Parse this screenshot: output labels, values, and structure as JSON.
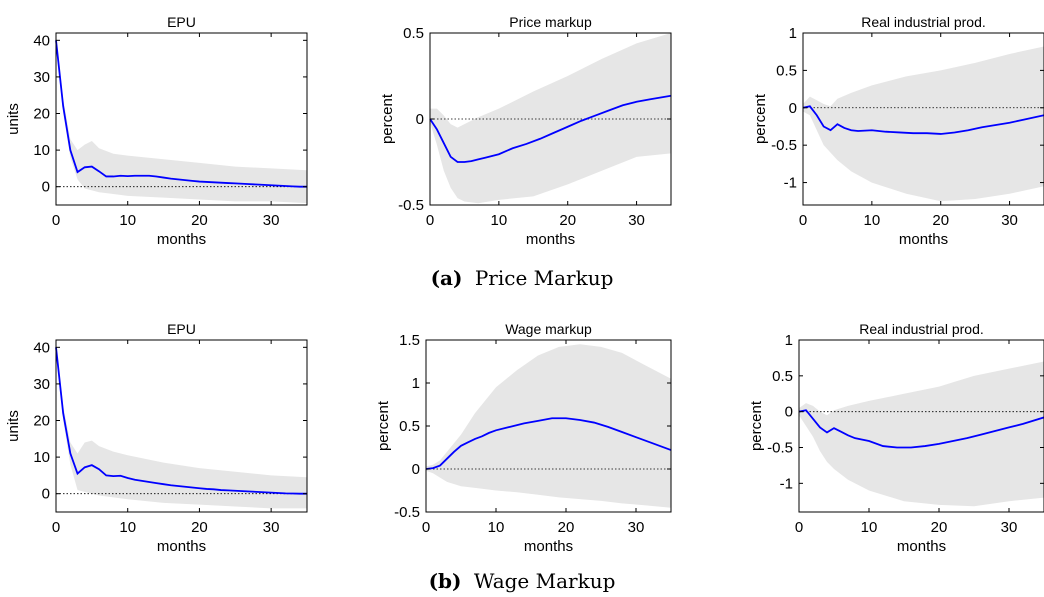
{
  "captions": [
    {
      "label": "(a)",
      "text": "Price Markup"
    },
    {
      "label": "(b)",
      "text": "Wage Markup"
    }
  ],
  "colors": {
    "line": "#0000ff",
    "band": "#e6e6e6",
    "zero_line": "#000000",
    "axes": "#000000"
  },
  "chart_data": [
    {
      "type": "line",
      "panel": "a1",
      "title": "EPU",
      "xlabel": "months",
      "ylabel": "units",
      "xlim": [
        0,
        35
      ],
      "ylim": [
        -5,
        42
      ],
      "xticks": [
        0,
        10,
        20,
        30
      ],
      "yticks": [
        0,
        10,
        20,
        30,
        40
      ],
      "ytick_labels": [
        "0",
        "10",
        "20",
        "30",
        "40"
      ],
      "zero_line": true,
      "grid": false,
      "x": [
        0,
        1,
        2,
        3,
        4,
        5,
        6,
        7,
        8,
        9,
        10,
        11,
        12,
        13,
        14,
        15,
        16,
        17,
        18,
        19,
        20,
        21,
        22,
        23,
        24,
        25,
        26,
        27,
        28,
        29,
        30,
        31,
        32,
        33,
        34,
        35
      ],
      "series": [
        {
          "values": [
            40,
            22,
            10,
            4,
            5.3,
            5.5,
            4.2,
            2.8,
            2.8,
            3.0,
            2.9,
            3.0,
            3.0,
            3.0,
            2.8,
            2.5,
            2.2,
            2.0,
            1.8,
            1.6,
            1.4,
            1.3,
            1.2,
            1.1,
            1.0,
            0.9,
            0.8,
            0.7,
            0.6,
            0.5,
            0.4,
            0.3,
            0.2,
            0.1,
            0.0,
            0.0
          ]
        }
      ],
      "band_x": [
        0,
        1,
        2,
        3,
        4,
        5,
        6,
        8,
        10,
        15,
        20,
        25,
        30,
        35
      ],
      "band_upper": [
        41,
        24,
        13,
        10,
        11.5,
        12.5,
        10.5,
        9,
        8.5,
        7.5,
        6.5,
        5.5,
        5,
        4.5
      ],
      "band_lower": [
        39,
        20,
        8,
        2,
        -0.5,
        -1,
        -1.5,
        -2,
        -2.5,
        -3,
        -3.5,
        -4,
        -4,
        -4.5
      ]
    },
    {
      "type": "line",
      "panel": "a2",
      "title": "Price markup",
      "xlabel": "months",
      "ylabel": "percent",
      "xlim": [
        0,
        35
      ],
      "ylim": [
        -0.5,
        0.5
      ],
      "xticks": [
        0,
        10,
        20,
        30
      ],
      "yticks": [
        -0.5,
        0,
        0.5
      ],
      "ytick_labels": [
        "-0.5",
        "0",
        "0.5"
      ],
      "zero_line": true,
      "grid": false,
      "x": [
        0,
        1,
        2,
        3,
        4,
        5,
        6,
        7,
        8,
        10,
        12,
        14,
        16,
        18,
        20,
        22,
        24,
        26,
        28,
        30,
        32,
        35
      ],
      "series": [
        {
          "values": [
            0,
            -0.06,
            -0.14,
            -0.22,
            -0.25,
            -0.25,
            -0.245,
            -0.235,
            -0.225,
            -0.205,
            -0.17,
            -0.145,
            -0.115,
            -0.08,
            -0.045,
            -0.01,
            0.02,
            0.05,
            0.08,
            0.1,
            0.115,
            0.135
          ]
        }
      ],
      "band_x": [
        0,
        1,
        2,
        3,
        4,
        5,
        7,
        10,
        15,
        20,
        25,
        30,
        35
      ],
      "band_upper": [
        0.06,
        0.06,
        0.02,
        -0.03,
        -0.05,
        -0.03,
        0.01,
        0.06,
        0.16,
        0.25,
        0.35,
        0.44,
        0.5
      ],
      "band_lower": [
        -0.02,
        -0.15,
        -0.3,
        -0.4,
        -0.46,
        -0.48,
        -0.49,
        -0.47,
        -0.45,
        -0.38,
        -0.3,
        -0.22,
        -0.2
      ]
    },
    {
      "type": "line",
      "panel": "a3",
      "title": "Real industrial prod.",
      "xlabel": "months",
      "ylabel": "percent",
      "xlim": [
        0,
        35
      ],
      "ylim": [
        -1.3,
        1
      ],
      "xticks": [
        0,
        10,
        20,
        30
      ],
      "yticks": [
        -1,
        -0.5,
        0,
        0.5,
        1
      ],
      "ytick_labels": [
        "-1",
        "-0.5",
        "0",
        "0.5",
        "1"
      ],
      "zero_line": true,
      "grid": false,
      "x": [
        0,
        1,
        2,
        3,
        4,
        5,
        6,
        7,
        8,
        10,
        12,
        14,
        16,
        18,
        20,
        22,
        24,
        26,
        28,
        30,
        32,
        35
      ],
      "series": [
        {
          "values": [
            0,
            0.02,
            -0.1,
            -0.25,
            -0.3,
            -0.22,
            -0.27,
            -0.3,
            -0.31,
            -0.3,
            -0.32,
            -0.33,
            -0.34,
            -0.34,
            -0.35,
            -0.33,
            -0.3,
            -0.26,
            -0.23,
            -0.2,
            -0.16,
            -0.1
          ]
        }
      ],
      "band_x": [
        0,
        1,
        2,
        3,
        4,
        5,
        7,
        10,
        15,
        20,
        25,
        30,
        35
      ],
      "band_upper": [
        0.05,
        0.15,
        0.1,
        0.05,
        0.02,
        0.12,
        0.2,
        0.3,
        0.42,
        0.5,
        0.6,
        0.72,
        0.82
      ],
      "band_lower": [
        -0.05,
        -0.1,
        -0.3,
        -0.5,
        -0.6,
        -0.7,
        -0.85,
        -1.0,
        -1.15,
        -1.25,
        -1.22,
        -1.15,
        -1.05
      ]
    },
    {
      "type": "line",
      "panel": "b1",
      "title": "EPU",
      "xlabel": "months",
      "ylabel": "units",
      "xlim": [
        0,
        35
      ],
      "ylim": [
        -5,
        42
      ],
      "xticks": [
        0,
        10,
        20,
        30
      ],
      "yticks": [
        0,
        10,
        20,
        30,
        40
      ],
      "ytick_labels": [
        "0",
        "10",
        "20",
        "30",
        "40"
      ],
      "zero_line": true,
      "grid": false,
      "x": [
        0,
        1,
        2,
        3,
        4,
        5,
        6,
        7,
        8,
        9,
        10,
        11,
        12,
        13,
        14,
        15,
        16,
        17,
        18,
        19,
        20,
        21,
        22,
        23,
        24,
        25,
        26,
        27,
        28,
        29,
        30,
        31,
        32,
        33,
        34,
        35
      ],
      "series": [
        {
          "values": [
            40,
            22,
            11,
            5.5,
            7.2,
            7.8,
            6.7,
            5.0,
            4.8,
            4.9,
            4.3,
            3.8,
            3.5,
            3.2,
            2.9,
            2.6,
            2.3,
            2.1,
            1.9,
            1.7,
            1.5,
            1.3,
            1.2,
            1.0,
            0.9,
            0.8,
            0.7,
            0.6,
            0.5,
            0.4,
            0.3,
            0.2,
            0.1,
            0.05,
            0.0,
            0.0
          ]
        }
      ],
      "band_x": [
        0,
        1,
        2,
        3,
        4,
        5,
        6,
        8,
        10,
        15,
        20,
        25,
        30,
        35
      ],
      "band_upper": [
        41,
        24,
        14,
        11,
        14,
        14.5,
        13,
        11.5,
        10.5,
        8.5,
        7,
        6,
        5,
        4.5
      ],
      "band_lower": [
        39,
        20,
        8,
        1,
        0.5,
        0,
        -0.5,
        -1,
        -1.5,
        -2.5,
        -3,
        -3.5,
        -4,
        -4
      ]
    },
    {
      "type": "line",
      "panel": "b2",
      "title": "Wage markup",
      "xlabel": "months",
      "ylabel": "percent",
      "xlim": [
        0,
        35
      ],
      "ylim": [
        -0.5,
        1.5
      ],
      "xticks": [
        0,
        10,
        20,
        30
      ],
      "yticks": [
        -0.5,
        0,
        0.5,
        1,
        1.5
      ],
      "ytick_labels": [
        "-0.5",
        "0",
        "0.5",
        "1",
        "1.5"
      ],
      "zero_line": true,
      "grid": false,
      "x": [
        0,
        1,
        2,
        3,
        4,
        5,
        6,
        7,
        8,
        9,
        10,
        12,
        14,
        16,
        18,
        20,
        22,
        24,
        26,
        28,
        30,
        32,
        35
      ],
      "series": [
        {
          "values": [
            0,
            0.01,
            0.04,
            0.12,
            0.2,
            0.27,
            0.31,
            0.35,
            0.38,
            0.42,
            0.45,
            0.49,
            0.53,
            0.56,
            0.59,
            0.59,
            0.57,
            0.54,
            0.49,
            0.43,
            0.37,
            0.31,
            0.22
          ]
        }
      ],
      "band_x": [
        0,
        1,
        2,
        3,
        5,
        7,
        10,
        13,
        16,
        19,
        22,
        25,
        28,
        31,
        35
      ],
      "band_upper": [
        0.03,
        0.05,
        0.1,
        0.2,
        0.4,
        0.65,
        0.95,
        1.15,
        1.32,
        1.42,
        1.45,
        1.42,
        1.35,
        1.22,
        1.05
      ],
      "band_lower": [
        -0.02,
        -0.05,
        -0.1,
        -0.15,
        -0.2,
        -0.22,
        -0.25,
        -0.27,
        -0.3,
        -0.33,
        -0.35,
        -0.37,
        -0.4,
        -0.42,
        -0.45
      ]
    },
    {
      "type": "line",
      "panel": "b3",
      "title": "Real industrial prod.",
      "xlabel": "months",
      "ylabel": "percent",
      "xlim": [
        0,
        35
      ],
      "ylim": [
        -1.4,
        1
      ],
      "xticks": [
        0,
        10,
        20,
        30
      ],
      "yticks": [
        -1,
        -0.5,
        0,
        0.5,
        1
      ],
      "ytick_labels": [
        "-1",
        "-0.5",
        "0",
        "0.5",
        "1"
      ],
      "zero_line": true,
      "grid": false,
      "x": [
        0,
        1,
        2,
        3,
        4,
        5,
        6,
        7,
        8,
        10,
        12,
        14,
        16,
        18,
        20,
        22,
        24,
        26,
        28,
        30,
        32,
        35
      ],
      "series": [
        {
          "values": [
            0,
            0.02,
            -0.1,
            -0.22,
            -0.29,
            -0.23,
            -0.28,
            -0.33,
            -0.37,
            -0.41,
            -0.48,
            -0.5,
            -0.5,
            -0.48,
            -0.45,
            -0.41,
            -0.37,
            -0.32,
            -0.27,
            -0.22,
            -0.17,
            -0.08
          ]
        }
      ],
      "band_x": [
        0,
        1,
        2,
        3,
        4,
        5,
        7,
        10,
        15,
        20,
        25,
        30,
        35
      ],
      "band_upper": [
        0.05,
        0.12,
        0.08,
        0.0,
        -0.05,
        0.02,
        0.08,
        0.15,
        0.25,
        0.35,
        0.5,
        0.6,
        0.7
      ],
      "band_lower": [
        -0.05,
        -0.2,
        -0.35,
        -0.55,
        -0.7,
        -0.8,
        -0.95,
        -1.1,
        -1.25,
        -1.3,
        -1.32,
        -1.25,
        -1.2
      ]
    }
  ]
}
